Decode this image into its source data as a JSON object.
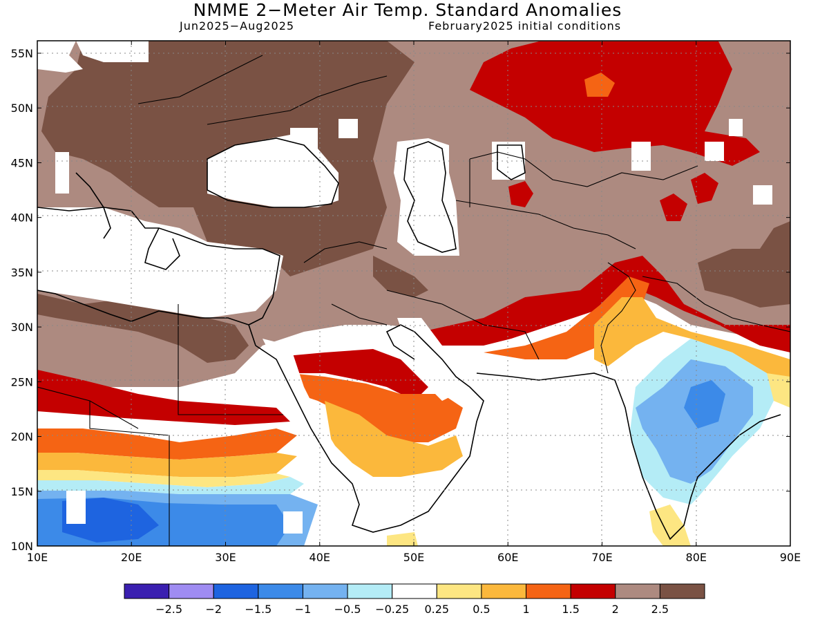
{
  "title": "NMME 2−Meter Air Temp. Standard Anomalies",
  "subtitle_left": "Jun2025−Aug2025",
  "subtitle_right": "February2025 initial conditions",
  "lat_labels": [
    "55N",
    "50N",
    "45N",
    "40N",
    "35N",
    "30N",
    "25N",
    "20N",
    "15N",
    "10N"
  ],
  "lon_labels": [
    "10E",
    "20E",
    "30E",
    "40E",
    "50E",
    "60E",
    "70E",
    "80E",
    "90E"
  ],
  "colorbar": {
    "colors": [
      "#3a1fb0",
      "#9f8cf2",
      "#1e64e0",
      "#3c8ae8",
      "#74b2f0",
      "#b4ecf6",
      "#ffffff",
      "#fde682",
      "#fbb83c",
      "#f56414",
      "#c40000",
      "#ad8a80",
      "#7a5244"
    ],
    "labels": [
      "−2.5",
      "−2",
      "−1.5",
      "−1",
      "−0.5",
      "−0.25",
      "0.25",
      "0.5",
      "1",
      "1.5",
      "2",
      "2.5"
    ]
  },
  "map_colors": {
    "brown_dark": "#7a5244",
    "brown_light": "#ad8a80",
    "red": "#c40000",
    "orange_dark": "#f56414",
    "orange": "#fbb83c",
    "yellow": "#fde682",
    "cyan": "#b4ecf6",
    "blue_light": "#74b2f0",
    "blue": "#3c8ae8",
    "blue_dark": "#1e64e0"
  }
}
